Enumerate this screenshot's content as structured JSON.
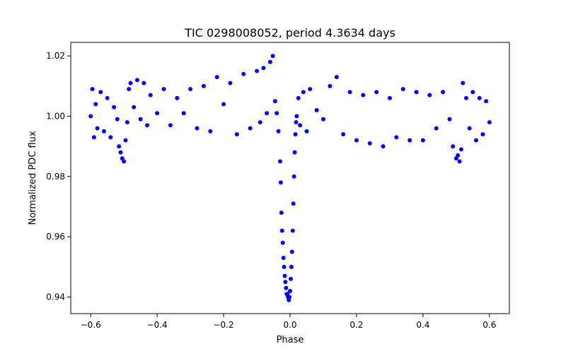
{
  "chart_data": {
    "type": "scatter",
    "title": "TIC 0298008052, period 4.3634 days",
    "xlabel": "Phase",
    "ylabel": "Normalized PDC flux",
    "xlim": [
      -0.66,
      0.66
    ],
    "ylim": [
      0.9345,
      1.0245
    ],
    "x_ticks": [
      -0.6,
      -0.4,
      -0.2,
      0.0,
      0.2,
      0.4,
      0.6
    ],
    "x_tick_labels": [
      "−0.6",
      "−0.4",
      "−0.2",
      "0.0",
      "0.2",
      "0.4",
      "0.6"
    ],
    "y_ticks": [
      0.94,
      0.96,
      0.98,
      1.0,
      1.02
    ],
    "y_tick_labels": [
      "0.94",
      "0.96",
      "0.98",
      "1.00",
      "1.02"
    ],
    "grid": false,
    "legend": "none",
    "marker_color": "#0000ff",
    "series": [
      {
        "points": [
          [
            -0.6,
            1.0
          ],
          [
            -0.595,
            1.009
          ],
          [
            -0.59,
            0.993
          ],
          [
            -0.585,
            1.004
          ],
          [
            -0.58,
            0.996
          ],
          [
            -0.57,
            1.008
          ],
          [
            -0.56,
            0.995
          ],
          [
            -0.55,
            1.006
          ],
          [
            -0.54,
            0.993
          ],
          [
            -0.53,
            1.003
          ],
          [
            -0.52,
            0.999
          ],
          [
            -0.515,
            0.99
          ],
          [
            -0.51,
            0.988
          ],
          [
            -0.505,
            0.986
          ],
          [
            -0.5,
            0.985
          ],
          [
            -0.495,
            0.992
          ],
          [
            -0.49,
            0.998
          ],
          [
            -0.485,
            1.009
          ],
          [
            -0.48,
            1.011
          ],
          [
            -0.47,
            1.003
          ],
          [
            -0.46,
            1.012
          ],
          [
            -0.45,
            0.999
          ],
          [
            -0.44,
            1.011
          ],
          [
            -0.43,
            0.997
          ],
          [
            -0.42,
            1.007
          ],
          [
            -0.4,
            1.001
          ],
          [
            -0.38,
            1.009
          ],
          [
            -0.36,
            0.997
          ],
          [
            -0.34,
            1.006
          ],
          [
            -0.32,
            1.001
          ],
          [
            -0.3,
            1.009
          ],
          [
            -0.28,
            0.996
          ],
          [
            -0.26,
            1.01
          ],
          [
            -0.24,
            0.995
          ],
          [
            -0.22,
            1.013
          ],
          [
            -0.2,
            1.004
          ],
          [
            -0.18,
            1.011
          ],
          [
            -0.16,
            0.994
          ],
          [
            -0.14,
            1.014
          ],
          [
            -0.12,
            0.996
          ],
          [
            -0.1,
            1.015
          ],
          [
            -0.09,
            0.998
          ],
          [
            -0.08,
            1.016
          ],
          [
            -0.07,
            1.001
          ],
          [
            -0.06,
            1.018
          ],
          [
            -0.052,
            1.02
          ],
          [
            -0.045,
            1.005
          ],
          [
            -0.04,
            1.001
          ],
          [
            -0.035,
            0.995
          ],
          [
            -0.03,
            0.985
          ],
          [
            -0.028,
            0.978
          ],
          [
            -0.026,
            0.968
          ],
          [
            -0.024,
            0.962
          ],
          [
            -0.022,
            0.958
          ],
          [
            -0.02,
            0.953
          ],
          [
            -0.018,
            0.95
          ],
          [
            -0.016,
            0.947
          ],
          [
            -0.014,
            0.945
          ],
          [
            -0.012,
            0.943
          ],
          [
            -0.01,
            0.941
          ],
          [
            -0.008,
            0.941
          ],
          [
            -0.006,
            0.94
          ],
          [
            -0.004,
            0.939
          ],
          [
            -0.002,
            0.94
          ],
          [
            0.0,
            0.942
          ],
          [
            0.002,
            0.946
          ],
          [
            0.004,
            0.95
          ],
          [
            0.006,
            0.955
          ],
          [
            0.008,
            0.962
          ],
          [
            0.01,
            0.971
          ],
          [
            0.012,
            0.98
          ],
          [
            0.014,
            0.988
          ],
          [
            0.016,
            0.994
          ],
          [
            0.018,
            0.998
          ],
          [
            0.02,
            1.0
          ],
          [
            0.025,
            1.006
          ],
          [
            0.03,
            0.997
          ],
          [
            0.04,
            1.008
          ],
          [
            0.05,
            0.995
          ],
          [
            0.06,
            1.009
          ],
          [
            0.08,
            1.002
          ],
          [
            0.1,
            0.999
          ],
          [
            0.12,
            1.01
          ],
          [
            0.14,
            1.013
          ],
          [
            0.16,
            0.994
          ],
          [
            0.18,
            1.008
          ],
          [
            0.2,
            0.992
          ],
          [
            0.22,
            1.007
          ],
          [
            0.24,
            0.991
          ],
          [
            0.26,
            1.008
          ],
          [
            0.28,
            0.99
          ],
          [
            0.3,
            1.006
          ],
          [
            0.32,
            0.993
          ],
          [
            0.34,
            1.009
          ],
          [
            0.36,
            0.992
          ],
          [
            0.38,
            1.008
          ],
          [
            0.4,
            0.992
          ],
          [
            0.42,
            1.007
          ],
          [
            0.44,
            0.996
          ],
          [
            0.46,
            1.008
          ],
          [
            0.48,
            0.999
          ],
          [
            0.49,
            0.99
          ],
          [
            0.5,
            0.986
          ],
          [
            0.505,
            0.987
          ],
          [
            0.51,
            0.985
          ],
          [
            0.515,
            0.989
          ],
          [
            0.52,
            1.011
          ],
          [
            0.53,
            1.006
          ],
          [
            0.54,
            0.996
          ],
          [
            0.55,
            1.008
          ],
          [
            0.56,
            0.992
          ],
          [
            0.57,
            1.006
          ],
          [
            0.58,
            0.994
          ],
          [
            0.59,
            1.005
          ],
          [
            0.6,
            0.998
          ]
        ]
      }
    ]
  }
}
